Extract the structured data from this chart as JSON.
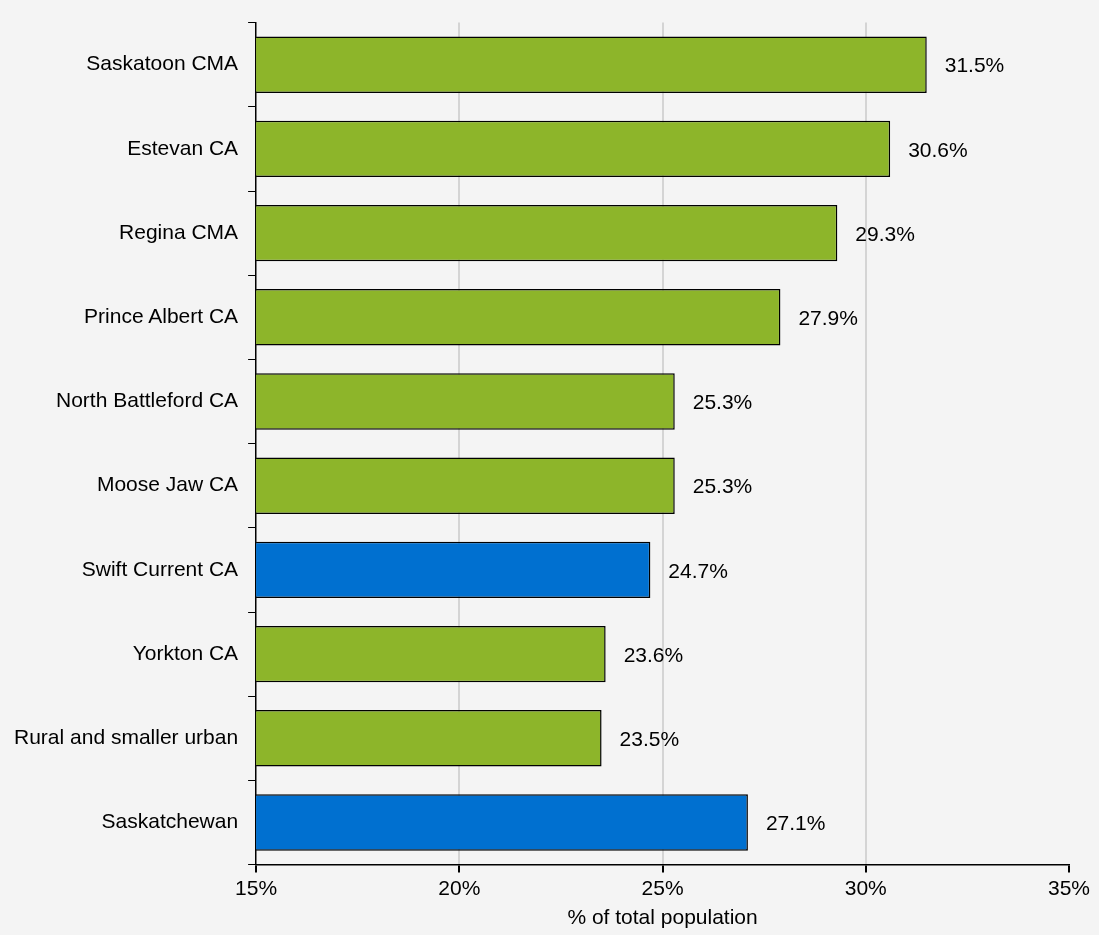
{
  "chart_data": {
    "type": "bar",
    "orientation": "horizontal",
    "xlabel": "% of total population",
    "categories": [
      "Saskatoon CMA",
      "Estevan CA",
      "Regina CMA",
      "Prince Albert CA",
      "North Battleford CA",
      "Moose Jaw CA",
      "Swift Current CA",
      "Yorkton CA",
      "Rural and smaller urban",
      "Saskatchewan"
    ],
    "values": [
      31.5,
      30.6,
      29.3,
      27.9,
      25.3,
      25.3,
      24.7,
      23.6,
      23.5,
      27.1
    ],
    "colors": [
      "#8db52a",
      "#8db52a",
      "#8db52a",
      "#8db52a",
      "#8db52a",
      "#8db52a",
      "#0070d0",
      "#8db52a",
      "#8db52a",
      "#0070d0"
    ],
    "value_labels": [
      "31.5%",
      "30.6%",
      "29.3%",
      "27.9%",
      "25.3%",
      "25.3%",
      "24.7%",
      "23.6%",
      "23.5%",
      "27.1%"
    ],
    "xlim": [
      15,
      35
    ],
    "xticks": [
      {
        "value": 15,
        "label": "15%"
      },
      {
        "value": 20,
        "label": "20%"
      },
      {
        "value": 25,
        "label": "25%"
      },
      {
        "value": 30,
        "label": "30%"
      },
      {
        "value": 35,
        "label": "35%"
      }
    ],
    "grid": "x",
    "legend": false
  }
}
